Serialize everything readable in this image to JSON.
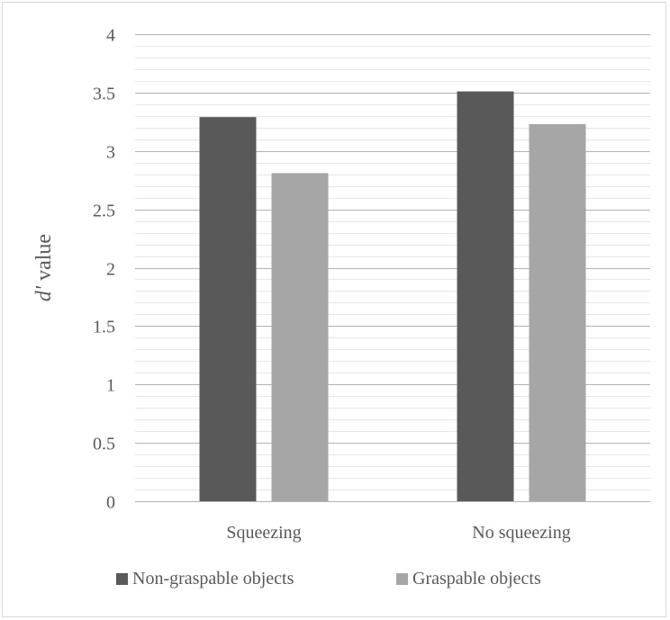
{
  "chart_data": {
    "type": "bar",
    "categories": [
      "Squeezing",
      "No squeezing"
    ],
    "series": [
      {
        "name": "Non-graspable objects",
        "values": [
          3.29,
          3.51
        ],
        "color": "#595959"
      },
      {
        "name": "Graspable objects",
        "values": [
          2.81,
          3.23
        ],
        "color": "#a6a6a6"
      }
    ],
    "ylabel_italic": "d'",
    "ylabel_rest": " value",
    "ylim": [
      0,
      4
    ],
    "yticks": [
      "0",
      "0.5",
      "1",
      "1.5",
      "2",
      "2.5",
      "3",
      "3.5",
      "4"
    ],
    "major_grid": true,
    "minor_grid": true,
    "grid_color": "#b3b3b3",
    "minor_grid_color": "#e6e6e6",
    "legend_position": "bottom"
  }
}
